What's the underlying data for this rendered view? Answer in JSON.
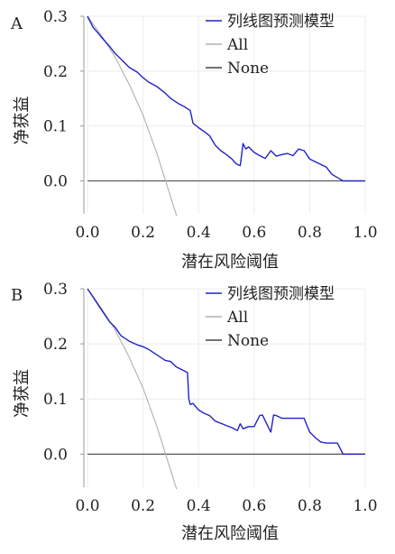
{
  "chart_data": [
    {
      "panel_label": "A",
      "type": "line",
      "xlabel": "潜在风险阈值",
      "ylabel": "净获益",
      "xlim": [
        0,
        1.0
      ],
      "ylim": [
        -0.06,
        0.3
      ],
      "x_ticks": [
        "0.0",
        "0.2",
        "0.4",
        "0.6",
        "0.8",
        "1.0"
      ],
      "y_ticks": [
        "0.0",
        "0.1",
        "0.2",
        "0.3"
      ],
      "x_tick_values": [
        0,
        0.2,
        0.4,
        0.6,
        0.8,
        1.0
      ],
      "y_tick_values": [
        0,
        0.1,
        0.2,
        0.3
      ],
      "grid": true,
      "legend_position": "top-right",
      "series": [
        {
          "name": "列线图预测模型",
          "color": "#2222c8",
          "x": [
            0.0,
            0.02,
            0.05,
            0.08,
            0.1,
            0.12,
            0.15,
            0.18,
            0.2,
            0.22,
            0.25,
            0.28,
            0.3,
            0.33,
            0.35,
            0.37,
            0.38,
            0.4,
            0.42,
            0.44,
            0.46,
            0.48,
            0.5,
            0.52,
            0.53,
            0.54,
            0.55,
            0.56,
            0.57,
            0.58,
            0.6,
            0.62,
            0.64,
            0.66,
            0.68,
            0.7,
            0.72,
            0.74,
            0.76,
            0.78,
            0.8,
            0.82,
            0.84,
            0.86,
            0.88,
            0.9,
            0.92,
            0.95,
            1.0
          ],
          "y": [
            0.3,
            0.28,
            0.262,
            0.245,
            0.232,
            0.222,
            0.207,
            0.198,
            0.188,
            0.18,
            0.172,
            0.16,
            0.15,
            0.14,
            0.135,
            0.128,
            0.105,
            0.097,
            0.09,
            0.082,
            0.065,
            0.055,
            0.048,
            0.04,
            0.034,
            0.03,
            0.028,
            0.068,
            0.058,
            0.062,
            0.052,
            0.046,
            0.041,
            0.055,
            0.045,
            0.048,
            0.05,
            0.046,
            0.058,
            0.055,
            0.04,
            0.035,
            0.03,
            0.025,
            0.012,
            0.006,
            0.0,
            0.0,
            0.0
          ]
        },
        {
          "name": "All",
          "color": "#b0b0b0",
          "x": [
            0.0,
            0.05,
            0.1,
            0.15,
            0.2,
            0.25,
            0.3,
            0.325,
            0.345
          ],
          "y": [
            0.3,
            0.265,
            0.225,
            0.176,
            0.12,
            0.05,
            -0.03,
            -0.07,
            -0.1
          ]
        },
        {
          "name": "None",
          "color": "#444444",
          "x": [
            0.0,
            1.0
          ],
          "y": [
            0.0,
            0.0
          ]
        }
      ]
    },
    {
      "panel_label": "B",
      "type": "line",
      "xlabel": "潜在风险阈值",
      "ylabel": "净获益",
      "xlim": [
        0,
        1.0
      ],
      "ylim": [
        -0.06,
        0.3
      ],
      "x_ticks": [
        "0.0",
        "0.2",
        "0.4",
        "0.6",
        "0.8",
        "1.0"
      ],
      "y_ticks": [
        "0.0",
        "0.1",
        "0.2",
        "0.3"
      ],
      "x_tick_values": [
        0,
        0.2,
        0.4,
        0.6,
        0.8,
        1.0
      ],
      "y_tick_values": [
        0,
        0.1,
        0.2,
        0.3
      ],
      "grid": true,
      "legend_position": "top-right",
      "series": [
        {
          "name": "列线图预测模型",
          "color": "#2222c8",
          "x": [
            0.0,
            0.02,
            0.05,
            0.08,
            0.1,
            0.12,
            0.15,
            0.18,
            0.2,
            0.22,
            0.25,
            0.28,
            0.3,
            0.32,
            0.34,
            0.36,
            0.365,
            0.37,
            0.38,
            0.4,
            0.42,
            0.44,
            0.46,
            0.48,
            0.5,
            0.52,
            0.54,
            0.55,
            0.56,
            0.58,
            0.6,
            0.62,
            0.63,
            0.65,
            0.66,
            0.67,
            0.68,
            0.7,
            0.72,
            0.75,
            0.78,
            0.8,
            0.82,
            0.84,
            0.86,
            0.88,
            0.9,
            0.92,
            1.0
          ],
          "y": [
            0.3,
            0.285,
            0.262,
            0.24,
            0.23,
            0.215,
            0.205,
            0.198,
            0.195,
            0.19,
            0.18,
            0.17,
            0.168,
            0.158,
            0.153,
            0.148,
            0.1,
            0.09,
            0.092,
            0.08,
            0.074,
            0.07,
            0.06,
            0.056,
            0.052,
            0.048,
            0.043,
            0.055,
            0.046,
            0.05,
            0.05,
            0.07,
            0.071,
            0.05,
            0.04,
            0.071,
            0.07,
            0.065,
            0.065,
            0.065,
            0.065,
            0.04,
            0.03,
            0.022,
            0.02,
            0.02,
            0.02,
            0.0,
            0.0
          ]
        },
        {
          "name": "All",
          "color": "#b0b0b0",
          "x": [
            0.0,
            0.05,
            0.1,
            0.15,
            0.2,
            0.25,
            0.3,
            0.325,
            0.345
          ],
          "y": [
            0.3,
            0.265,
            0.225,
            0.176,
            0.12,
            0.05,
            -0.03,
            -0.07,
            -0.1
          ]
        },
        {
          "name": "None",
          "color": "#444444",
          "x": [
            0.0,
            1.0
          ],
          "y": [
            0.0,
            0.0
          ]
        }
      ]
    }
  ]
}
